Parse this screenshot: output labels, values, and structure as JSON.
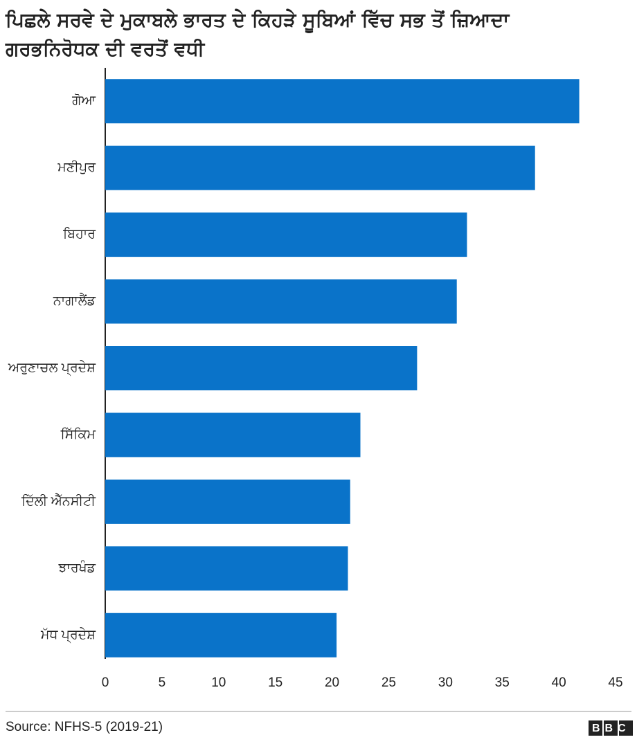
{
  "chart_data": {
    "type": "bar",
    "orientation": "horizontal",
    "title": "ਪਿਛਲੇ ਸਰਵੇ ਦੇ ਮੁਕਾਬਲੇ ਭਾਰਤ ਦੇ ਕਿਹੜੇ ਸੂਬਿਆਂ ਵਿੱਚ ਸਭ ਤੋਂ ਜ਼ਿਆਦਾ ਗਰਭਨਿਰੋਧਕ ਦੀ ਵਰਤੋਂ ਵਧੀ",
    "categories": [
      "ਗੋਆ",
      "ਮਣੀਪੁਰ",
      "ਬਿਹਾਰ",
      "ਨਾਗਾਲੈਂਡ",
      "ਅਰੁਣਾਚਲ ਪ੍ਰਦੇਸ਼",
      "ਸਿੱਕਿਮ",
      "ਦਿੱਲੀ ਐੱਨਸੀਟੀ",
      "ਝਾਰਖੰਡ",
      "ਮੱਧ ਪ੍ਰਦੇਸ਼"
    ],
    "values": [
      41.8,
      37.9,
      31.9,
      31.0,
      27.5,
      22.5,
      21.6,
      21.4,
      20.4
    ],
    "color": "#0a73c9",
    "xlim": [
      0,
      45
    ],
    "xticks": [
      0,
      5,
      10,
      15,
      20,
      25,
      30,
      35,
      40,
      45
    ],
    "grid": false,
    "source": "Source: NFHS-5 (2019-21)",
    "logo": "BBC"
  }
}
